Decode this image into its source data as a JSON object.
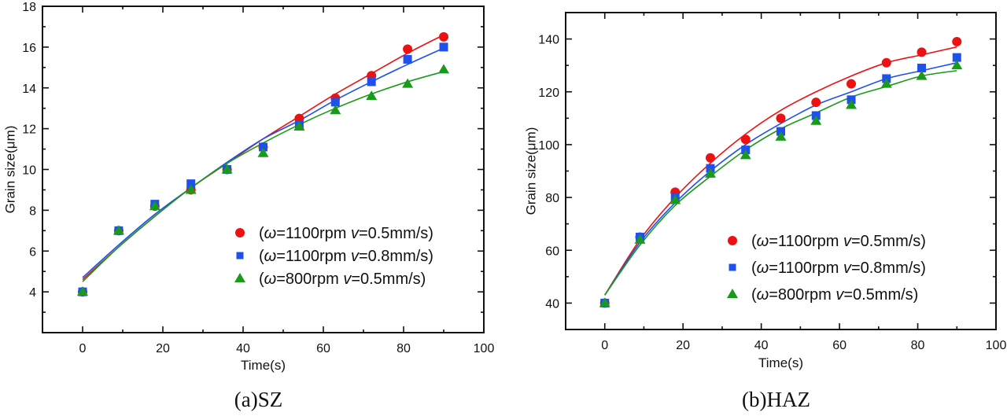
{
  "chart_data": [
    {
      "type": "scatter",
      "caption": "(a)SZ",
      "title": "",
      "xlabel": "Time(s)",
      "ylabel": "Grain size(μm)",
      "xlim": [
        -10,
        100
      ],
      "ylim": [
        2,
        18
      ],
      "xticks": [
        0,
        20,
        40,
        60,
        80,
        100
      ],
      "yticks": [
        4,
        6,
        8,
        10,
        12,
        14,
        16,
        18
      ],
      "grid": false,
      "legend_position": "center-right",
      "x": [
        0,
        9,
        18,
        27,
        36,
        45,
        54,
        63,
        72,
        81,
        90
      ],
      "series": [
        {
          "name": "(ω=1100rpm v=0.5mm/s)",
          "marker": "circle",
          "color": "#ee1111",
          "values": [
            4.0,
            7.0,
            8.2,
            9.0,
            10.0,
            11.1,
            12.5,
            13.5,
            14.6,
            15.9,
            16.5
          ],
          "fit": [
            4.6,
            6.2,
            7.7,
            9.1,
            10.3,
            11.5,
            12.6,
            13.7,
            14.7,
            15.7,
            16.6
          ]
        },
        {
          "name": "(ω=1100rpm v=0.8mm/s)",
          "marker": "square",
          "color": "#1e50ee",
          "values": [
            4.0,
            7.0,
            8.3,
            9.3,
            10.0,
            11.1,
            12.2,
            13.3,
            14.3,
            15.4,
            16.0
          ],
          "fit": [
            4.7,
            6.3,
            7.8,
            9.1,
            10.35,
            11.5,
            12.4,
            13.4,
            14.3,
            15.15,
            15.95
          ]
        },
        {
          "name": "(ω=800rpm v=0.5mm/s)",
          "marker": "triangle",
          "color": "#1a9a1a",
          "values": [
            4.0,
            7.0,
            8.2,
            9.0,
            10.0,
            10.8,
            12.1,
            12.9,
            13.6,
            14.2,
            14.9
          ],
          "fit": [
            4.5,
            6.2,
            7.7,
            9.1,
            10.3,
            11.3,
            12.2,
            13.0,
            13.7,
            14.3,
            14.8
          ]
        }
      ]
    },
    {
      "type": "scatter",
      "caption": "(b)HAZ",
      "title": "",
      "xlabel": "Time(s)",
      "ylabel": "Grain size(μm)",
      "xlim": [
        -10,
        100
      ],
      "ylim": [
        30,
        150
      ],
      "xticks": [
        0,
        20,
        40,
        60,
        80,
        100
      ],
      "yticks": [
        40,
        60,
        80,
        100,
        120,
        140
      ],
      "grid": false,
      "legend_position": "center-right",
      "x": [
        0,
        9,
        18,
        27,
        36,
        45,
        54,
        63,
        72,
        81,
        90
      ],
      "series": [
        {
          "name": "(ω=1100rpm v=0.5mm/s)",
          "marker": "circle",
          "color": "#ee1111",
          "values": [
            40,
            65,
            82,
            95,
            102,
            110,
            116,
            123,
            131,
            135,
            139
          ],
          "fit": [
            43,
            64,
            80,
            93,
            104,
            113,
            120,
            126,
            131,
            134,
            137
          ]
        },
        {
          "name": "(ω=1100rpm v=0.8mm/s)",
          "marker": "square",
          "color": "#1e50ee",
          "values": [
            40,
            65,
            80,
            91,
            98,
            105,
            111,
            117,
            125,
            129,
            133
          ],
          "fit": [
            43,
            63,
            78,
            90,
            100,
            108,
            115,
            120,
            125,
            128,
            131
          ]
        },
        {
          "name": "(ω=800rpm v=0.5mm/s)",
          "marker": "triangle",
          "color": "#1a9a1a",
          "values": [
            40,
            64,
            79,
            89,
            96,
            103,
            109,
            115,
            123,
            126,
            130
          ],
          "fit": [
            43,
            62,
            77,
            88,
            98,
            106,
            112,
            118,
            122,
            126,
            128
          ]
        }
      ]
    }
  ]
}
